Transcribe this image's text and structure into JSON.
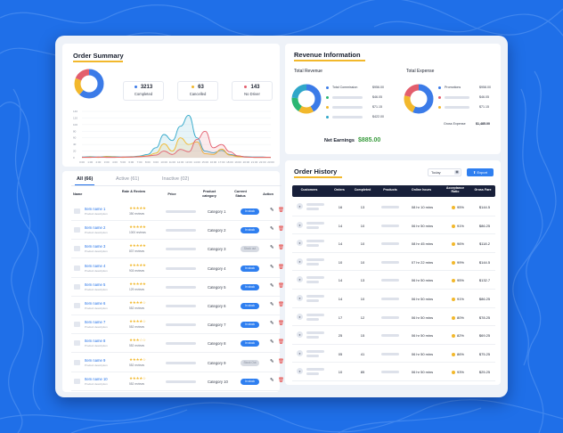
{
  "order_summary": {
    "title": "Order Summary",
    "stats": [
      {
        "value": "3213",
        "label": "Completed",
        "color": "#3b7be8"
      },
      {
        "value": "63",
        "label": "Cancelled",
        "color": "#f2b82c"
      },
      {
        "value": "143",
        "label": "No Driver",
        "color": "#e35e6d"
      }
    ],
    "chart_data": {
      "type": "area",
      "y_ticks": [
        "140",
        "120",
        "100",
        "80",
        "60",
        "40",
        "20",
        "0"
      ],
      "x_ticks": [
        "0:00",
        "1:00",
        "2:00",
        "3:00",
        "4:00",
        "5:00",
        "6:00",
        "7:00",
        "8:00",
        "9:00",
        "10:00",
        "11:00",
        "12:00",
        "13:00",
        "14:00",
        "15:00",
        "16:00",
        "17:00",
        "18:00",
        "19:00",
        "20:00",
        "21:00",
        "22:00",
        "23:00"
      ],
      "series": [
        {
          "color": "#2fa7c9",
          "values": [
            2,
            3,
            2,
            4,
            3,
            2,
            3,
            5,
            10,
            30,
            70,
            52,
            95,
            128,
            60,
            20,
            15,
            22,
            10,
            5,
            3,
            2,
            2,
            1
          ]
        },
        {
          "color": "#f2b82c",
          "values": [
            1,
            2,
            1,
            3,
            2,
            1,
            2,
            4,
            6,
            14,
            42,
            20,
            60,
            40,
            48,
            12,
            10,
            26,
            8,
            3,
            2,
            1,
            1,
            1
          ]
        },
        {
          "color": "#e35e6d",
          "values": [
            1,
            1,
            2,
            1,
            1,
            2,
            2,
            3,
            5,
            8,
            20,
            10,
            25,
            18,
            55,
            80,
            30,
            40,
            18,
            6,
            2,
            1,
            1,
            1
          ]
        }
      ],
      "ylim": [
        0,
        140
      ]
    }
  },
  "revenue": {
    "title": "Revenue Information",
    "total_revenue": {
      "title": "Total Revenue",
      "rows": [
        {
          "label": "Total Commission",
          "value": "$956.00",
          "color": "#3b7be8",
          "has_label": true
        },
        {
          "label": "",
          "value": "$46.05",
          "color": "#2bb673",
          "has_label": false
        },
        {
          "label": "",
          "value": "$71.15",
          "color": "#f2b82c",
          "has_label": false
        },
        {
          "label": "",
          "value": "$422.00",
          "color": "#2fa7c9",
          "has_label": false
        }
      ]
    },
    "total_expense": {
      "title": "Total Expense",
      "rows": [
        {
          "label": "Promotions",
          "value": "$958.00",
          "color": "#3b7be8",
          "has_label": true
        },
        {
          "label": "",
          "value": "$46.05",
          "color": "#e35e6d",
          "has_label": false
        },
        {
          "label": "",
          "value": "$71.15",
          "color": "#f2b82c",
          "has_label": false
        }
      ],
      "gross_label": "Gross Expense",
      "gross_value": "$1,485.00"
    },
    "net_label": "Net Earnings",
    "net_value": "$885.00"
  },
  "products": {
    "tabs": [
      {
        "label": "All",
        "count": "(66)"
      },
      {
        "label": "Active",
        "count": "(61)"
      },
      {
        "label": "Inactive",
        "count": "(02)"
      }
    ],
    "headers": [
      "Name",
      "Rate & Review",
      "Price",
      "Product category",
      "Current Status",
      "Action"
    ],
    "rows": [
      {
        "name": "Item name 1",
        "desc": "Product description",
        "stars": "★★★★★",
        "reviews": "350 reviews",
        "category": "Category 1",
        "status": "In stock",
        "in_stock": true
      },
      {
        "name": "Item name 2",
        "desc": "Product description",
        "stars": "★★★★★",
        "reviews": "1000 reviews",
        "category": "Category 2",
        "status": "In stock",
        "in_stock": true
      },
      {
        "name": "Item name 3",
        "desc": "Product description",
        "stars": "★★★★★",
        "reviews": "837 reviews",
        "category": "Category 3",
        "status": "Stock out",
        "in_stock": false
      },
      {
        "name": "Item name 4",
        "desc": "Product description",
        "stars": "★★★★★",
        "reviews": "903 reviews",
        "category": "Category 4",
        "status": "In stock",
        "in_stock": true
      },
      {
        "name": "Item name 5",
        "desc": "Product description",
        "stars": "★★★★★",
        "reviews": "129 reviews",
        "category": "Category 5",
        "status": "In stock",
        "in_stock": true
      },
      {
        "name": "Item name 6",
        "desc": "Product description",
        "stars": "★★★★☆",
        "reviews": "552 reviews",
        "category": "Category 6",
        "status": "In stock",
        "in_stock": true
      },
      {
        "name": "Item name 7",
        "desc": "Product description",
        "stars": "★★★★☆",
        "reviews": "552 reviews",
        "category": "Category 7",
        "status": "In stock",
        "in_stock": true
      },
      {
        "name": "Item name 8",
        "desc": "Product description",
        "stars": "★★★☆☆",
        "reviews": "552 reviews",
        "category": "Category 8",
        "status": "In stock",
        "in_stock": true
      },
      {
        "name": "Item name 9",
        "desc": "Product description",
        "stars": "★★★★☆",
        "reviews": "552 reviews",
        "category": "Category 9",
        "status": "Stock Out",
        "in_stock": false
      },
      {
        "name": "Item name 10",
        "desc": "Product description",
        "stars": "★★★★☆",
        "reviews": "552 reviews",
        "category": "Category 10",
        "status": "In stock",
        "in_stock": true
      }
    ]
  },
  "order_history": {
    "title": "Order History",
    "filter_value": "Today",
    "export_label": "Export",
    "headers": [
      "Customers",
      "Orders",
      "Completed",
      "Products",
      "Online hours",
      "Acceptance Ratio",
      "Gross Fare"
    ],
    "rows": [
      {
        "orders": "16",
        "completed": "13",
        "hours": "08 hr 10 mins",
        "ratio": "95%",
        "fare": "$144.5"
      },
      {
        "orders": "14",
        "completed": "10",
        "hours": "06 hr 50 mins",
        "ratio": "91%",
        "fare": "$86.25"
      },
      {
        "orders": "14",
        "completed": "10",
        "hours": "08 hr 45 mins",
        "ratio": "96%",
        "fare": "$118.2"
      },
      {
        "orders": "10",
        "completed": "10",
        "hours": "07 hr 22 mins",
        "ratio": "99%",
        "fare": "$144.5"
      },
      {
        "orders": "14",
        "completed": "13",
        "hours": "06 hr 50 mins",
        "ratio": "95%",
        "fare": "$132.7"
      },
      {
        "orders": "14",
        "completed": "10",
        "hours": "06 hr 50 mins",
        "ratio": "91%",
        "fare": "$86.25"
      },
      {
        "orders": "17",
        "completed": "12",
        "hours": "06 hr 50 mins",
        "ratio": "80%",
        "fare": "$78.25"
      },
      {
        "orders": "25",
        "completed": "15",
        "hours": "06 hr 50 mins",
        "ratio": "82%",
        "fare": "$69.25"
      },
      {
        "orders": "05",
        "completed": "41",
        "hours": "06 hr 50 mins",
        "ratio": "86%",
        "fare": "$75.25"
      },
      {
        "orders": "10",
        "completed": "85",
        "hours": "06 hr 50 mins",
        "ratio": "93%",
        "fare": "$25.25"
      }
    ]
  }
}
